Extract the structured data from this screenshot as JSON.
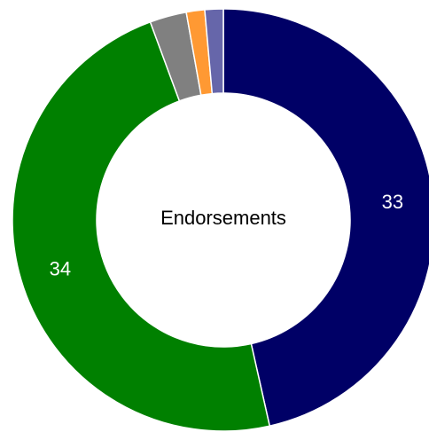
{
  "chart_data": {
    "type": "pie",
    "variant": "donut",
    "center_label": "Endorsements",
    "slices": [
      {
        "value": 33,
        "color": "#000066",
        "label": "33"
      },
      {
        "value": 34,
        "color": "#008000",
        "label": "34"
      },
      {
        "value": 2,
        "color": "#808080",
        "label": ""
      },
      {
        "value": 1,
        "color": "#FF9933",
        "label": ""
      },
      {
        "value": 1,
        "color": "#6666AA",
        "label": ""
      }
    ]
  }
}
